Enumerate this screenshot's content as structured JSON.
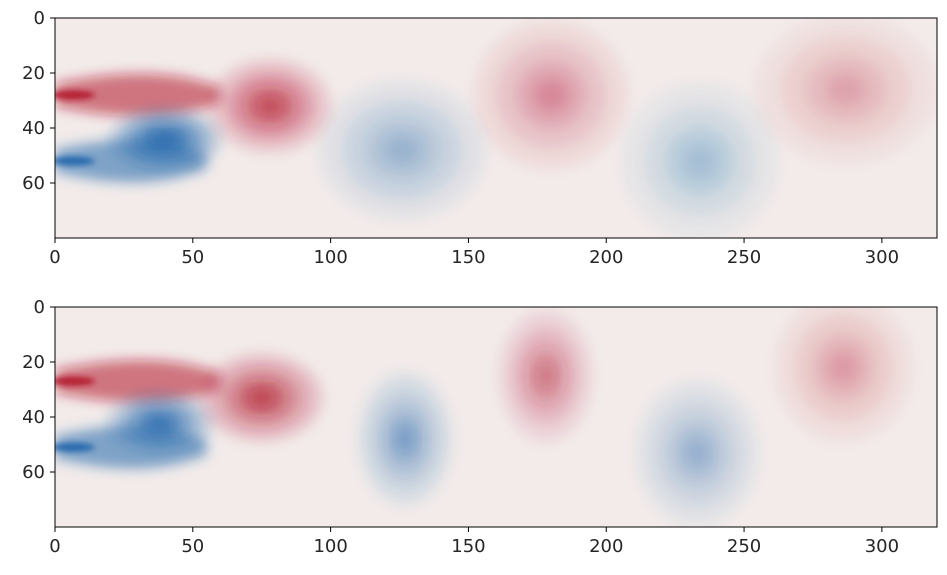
{
  "chart_data": [
    {
      "type": "heatmap",
      "panel": "top",
      "title": "",
      "xlabel": "",
      "ylabel": "",
      "xlim": [
        0,
        320
      ],
      "ylim": [
        80,
        0
      ],
      "x_ticks": [
        "0",
        "50",
        "100",
        "150",
        "200",
        "250",
        "300"
      ],
      "y_ticks": [
        "0",
        "20",
        "40",
        "60"
      ],
      "colormap": "diverging red-white-blue (vorticity field)",
      "colors": {
        "positive": "#b2182b",
        "negative": "#2166ac",
        "neutral": "#f2ebea"
      },
      "features": [
        {
          "kind": "inflow-shear-layer",
          "sign": "positive",
          "x": [
            0,
            60
          ],
          "y": 28,
          "peak": 1.0
        },
        {
          "kind": "inflow-shear-layer",
          "sign": "negative",
          "x": [
            0,
            55
          ],
          "y": 52,
          "peak": -1.0
        },
        {
          "kind": "eddy",
          "sign": "negative",
          "cx": 40,
          "cy": 44,
          "rx": 20,
          "ry": 11,
          "strength": -0.75
        },
        {
          "kind": "eddy",
          "sign": "positive",
          "cx": 78,
          "cy": 32,
          "rx": 22,
          "ry": 17,
          "strength": 0.45
        },
        {
          "kind": "eddy",
          "sign": "negative",
          "cx": 126,
          "cy": 48,
          "rx": 30,
          "ry": 25,
          "strength": -0.2
        },
        {
          "kind": "eddy",
          "sign": "positive",
          "cx": 180,
          "cy": 28,
          "rx": 28,
          "ry": 27,
          "strength": 0.2
        },
        {
          "kind": "eddy",
          "sign": "negative",
          "cx": 234,
          "cy": 52,
          "rx": 28,
          "ry": 28,
          "strength": -0.16
        },
        {
          "kind": "eddy",
          "sign": "positive",
          "cx": 287,
          "cy": 26,
          "rx": 33,
          "ry": 27,
          "strength": 0.14
        }
      ]
    },
    {
      "type": "heatmap",
      "panel": "bottom",
      "title": "",
      "xlabel": "",
      "ylabel": "",
      "xlim": [
        0,
        320
      ],
      "ylim": [
        80,
        0
      ],
      "x_ticks": [
        "0",
        "50",
        "100",
        "150",
        "200",
        "250",
        "300"
      ],
      "y_ticks": [
        "0",
        "20",
        "40",
        "60"
      ],
      "colormap": "diverging red-white-blue (vorticity field)",
      "colors": {
        "positive": "#b2182b",
        "negative": "#2166ac",
        "neutral": "#f2ebea"
      },
      "features": [
        {
          "kind": "inflow-shear-layer",
          "sign": "positive",
          "x": [
            0,
            60
          ],
          "y": 27,
          "peak": 1.0
        },
        {
          "kind": "inflow-shear-layer",
          "sign": "negative",
          "x": [
            0,
            55
          ],
          "y": 51,
          "peak": -1.0
        },
        {
          "kind": "eddy",
          "sign": "negative",
          "cx": 38,
          "cy": 42,
          "rx": 19,
          "ry": 11,
          "strength": -0.65
        },
        {
          "kind": "eddy",
          "sign": "positive",
          "cx": 75,
          "cy": 33,
          "rx": 22,
          "ry": 16,
          "strength": 0.5
        },
        {
          "kind": "eddy",
          "sign": "negative",
          "cx": 127,
          "cy": 48,
          "rx": 17,
          "ry": 24,
          "strength": -0.3
        },
        {
          "kind": "eddy",
          "sign": "positive",
          "cx": 178,
          "cy": 25,
          "rx": 17,
          "ry": 24,
          "strength": 0.28
        },
        {
          "kind": "eddy",
          "sign": "negative",
          "cx": 233,
          "cy": 53,
          "rx": 22,
          "ry": 26,
          "strength": -0.22
        },
        {
          "kind": "eddy",
          "sign": "positive",
          "cx": 286,
          "cy": 22,
          "rx": 25,
          "ry": 27,
          "strength": 0.16
        }
      ]
    }
  ]
}
